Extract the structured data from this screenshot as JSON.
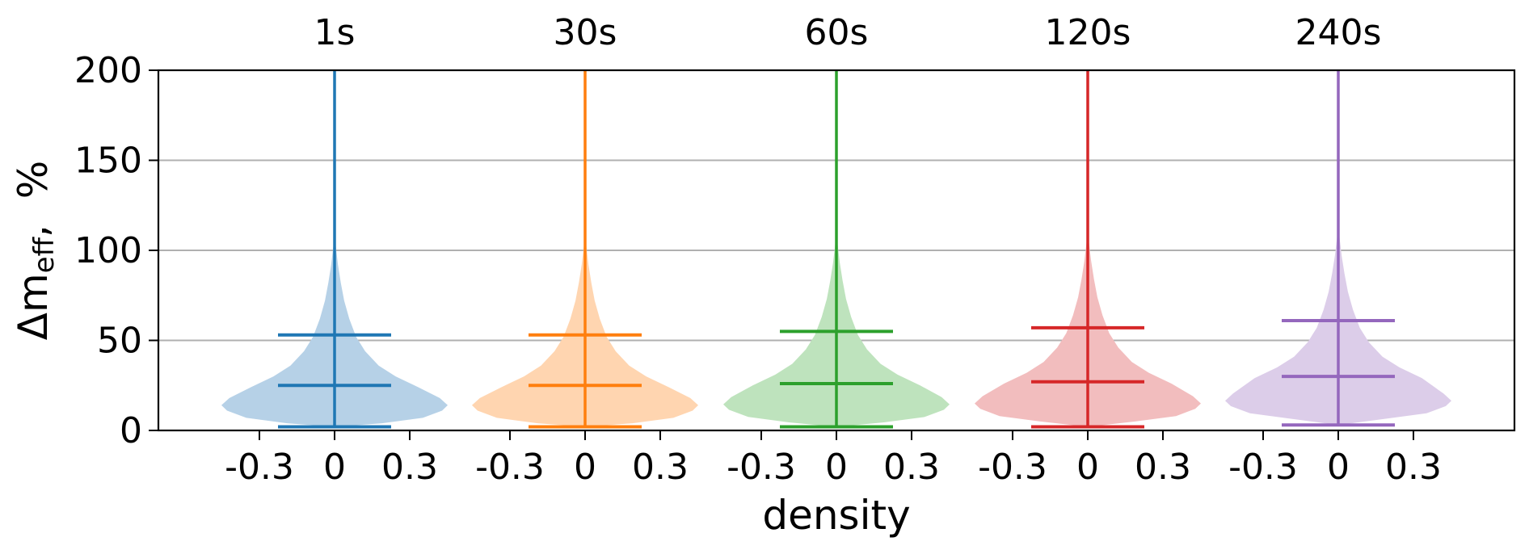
{
  "chart_data": {
    "type": "violin",
    "xlabel": "density",
    "ylabel_main": "Δm",
    "ylabel_sub": "eff",
    "ylabel_unit": ",  %",
    "ylim": [
      0,
      200
    ],
    "yticks": [
      "0",
      "50",
      "100",
      "150",
      "200"
    ],
    "xticks": [
      "-0.3",
      "0",
      "0.3"
    ],
    "grid": "horizontal",
    "series": [
      {
        "name": "1s",
        "color": "#1f77b4",
        "fill": "#b6d1e7",
        "median": 25,
        "p90": 53,
        "min": 2,
        "max": 200
      },
      {
        "name": "30s",
        "color": "#ff7f0e",
        "fill": "#ffd5b0",
        "median": 25,
        "p90": 53,
        "min": 2,
        "max": 200
      },
      {
        "name": "60s",
        "color": "#2ca02c",
        "fill": "#bee3bd",
        "median": 26,
        "p90": 55,
        "min": 2,
        "max": 200
      },
      {
        "name": "120s",
        "color": "#d62728",
        "fill": "#f2bdbe",
        "median": 27,
        "p90": 57,
        "min": 2,
        "max": 200
      },
      {
        "name": "240s",
        "color": "#9467bd",
        "fill": "#dccde9",
        "median": 30,
        "p90": 61,
        "min": 3,
        "max": 200
      }
    ]
  }
}
